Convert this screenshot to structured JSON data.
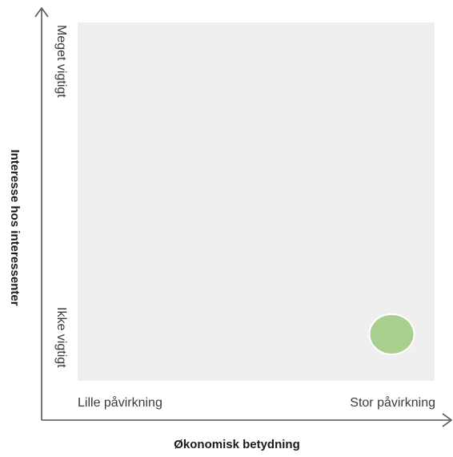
{
  "chart_data": {
    "type": "scatter",
    "xlabel": "Økonomisk betydning",
    "ylabel": "Interesse hos interessenter",
    "x_tick_labels": [
      "Lille påvirkning",
      "Stor påvirkning"
    ],
    "y_tick_labels": [
      "Ikke vigtigt",
      "Meget vigtigt"
    ],
    "xlim": [
      0,
      1
    ],
    "ylim": [
      0,
      1
    ],
    "grid": false,
    "points": [
      {
        "x": 0.88,
        "y": 0.13,
        "color": "#a8cf8e"
      }
    ]
  },
  "colors": {
    "plot_background": "#efefef",
    "axis_line": "#555555"
  }
}
